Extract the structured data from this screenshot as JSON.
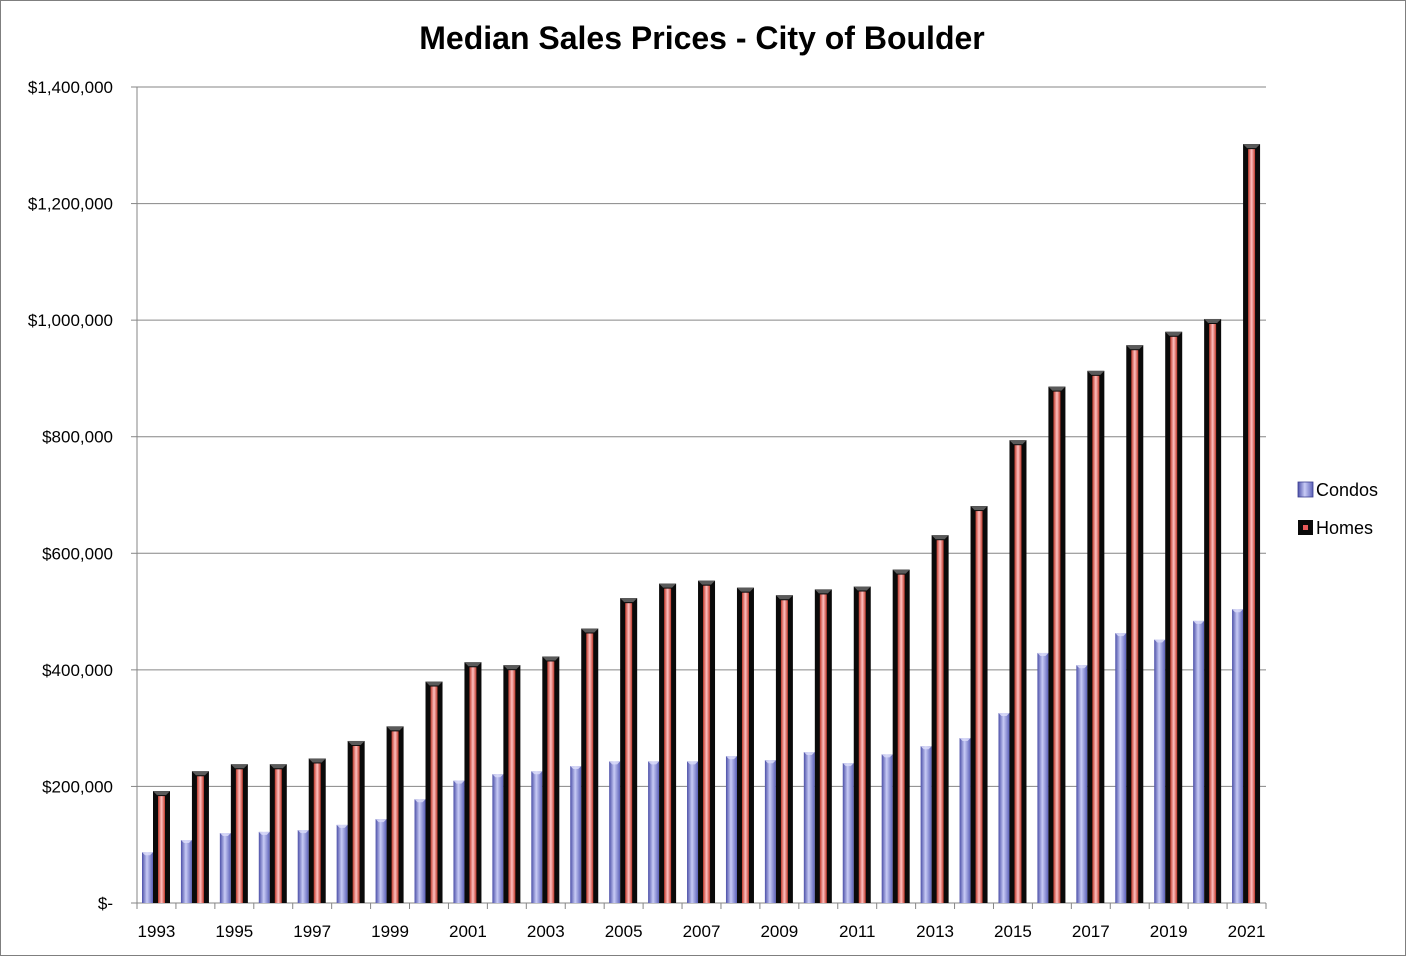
{
  "chart_data": {
    "type": "bar",
    "title": "Median Sales Prices - City of Boulder",
    "xlabel": "",
    "ylabel": "",
    "ylim": [
      0,
      1400000
    ],
    "y_ticks": [
      {
        "value": 0,
        "label": "$-"
      },
      {
        "value": 200000,
        "label": "$200,000"
      },
      {
        "value": 400000,
        "label": "$400,000"
      },
      {
        "value": 600000,
        "label": "$600,000"
      },
      {
        "value": 800000,
        "label": "$800,000"
      },
      {
        "value": 1000000,
        "label": "$1,000,000"
      },
      {
        "value": 1200000,
        "label": "$1,200,000"
      },
      {
        "value": 1400000,
        "label": "$1,400,000"
      }
    ],
    "grid": true,
    "legend_position": "right",
    "categories": [
      "1993",
      "1994",
      "1995",
      "1996",
      "1997",
      "1998",
      "1999",
      "2000",
      "2001",
      "2002",
      "2003",
      "2004",
      "2005",
      "2006",
      "2007",
      "2008",
      "2009",
      "2010",
      "2011",
      "2012",
      "2013",
      "2014",
      "2015",
      "2016",
      "2017",
      "2018",
      "2019",
      "2020",
      "2021"
    ],
    "x_tick_labels": [
      "1993",
      "",
      "1995",
      "",
      "1997",
      "",
      "1999",
      "",
      "2001",
      "",
      "2003",
      "",
      "2005",
      "",
      "2007",
      "",
      "2009",
      "",
      "2011",
      "",
      "2013",
      "",
      "2015",
      "",
      "2017",
      "",
      "2019",
      "",
      "2021"
    ],
    "series": [
      {
        "name": "Condos",
        "color": "#7b7fd8",
        "values": [
          87000,
          108000,
          120000,
          122000,
          125000,
          134000,
          144000,
          178000,
          210000,
          221000,
          226000,
          235000,
          243000,
          243000,
          243000,
          252000,
          245000,
          259000,
          240000,
          255000,
          269000,
          283000,
          326000,
          429000,
          408000,
          463000,
          452000,
          484000,
          504000
        ]
      },
      {
        "name": "Homes",
        "color": "#e85a5a",
        "values": [
          192000,
          226000,
          238000,
          238000,
          248000,
          278000,
          303000,
          380000,
          413000,
          408000,
          423000,
          471000,
          523000,
          548000,
          553000,
          541000,
          528000,
          538000,
          543000,
          572000,
          631000,
          681000,
          794000,
          886000,
          913000,
          957000,
          980000,
          1002000,
          1302000
        ]
      }
    ]
  }
}
